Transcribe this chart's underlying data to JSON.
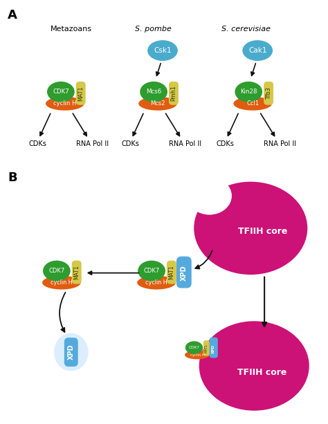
{
  "bg_color": "#ffffff",
  "panel_A_label": "A",
  "panel_B_label": "B",
  "col1_title": "Metazoans",
  "col2_title": "S. pombe",
  "col3_title": "S. cerevisiae",
  "csk1_label": "Csk1",
  "cak1_label": "Cak1",
  "cdks_label": "CDKs",
  "rnapol_label": "RNA Pol II",
  "tfiih_label": "TFIIH core",
  "xpd_label": "XPD",
  "color_blue_circle": "#4aabcc",
  "color_green": "#2e9c2e",
  "color_orange": "#e05c10",
  "color_yellow": "#d4c84a",
  "color_magenta": "#cc1177",
  "color_cyan_xpd": "#55aadd",
  "color_arrow": "#111111"
}
